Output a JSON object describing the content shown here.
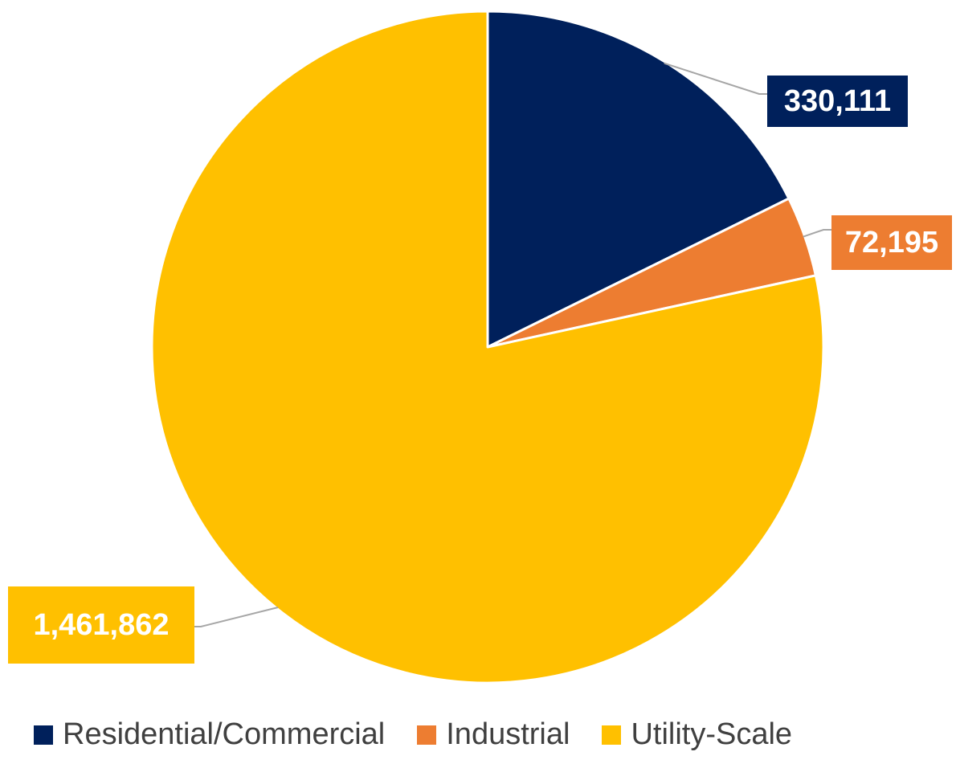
{
  "chart_data": {
    "type": "pie",
    "slices": [
      {
        "label": "Residential/Commercial",
        "value": 330111,
        "display": "330,111",
        "color": "#00205B",
        "label_text_color": "#ffffff"
      },
      {
        "label": "Industrial",
        "value": 72195,
        "display": "72,195",
        "color": "#ED7D31",
        "label_text_color": "#ffffff"
      },
      {
        "label": "Utility-Scale",
        "value": 1461862,
        "display": "1,461,862",
        "color": "#FFC000",
        "label_text_color": "#ffffff"
      }
    ],
    "start_angle_deg": 0,
    "direction": "clockwise",
    "legend_position": "bottom",
    "data_labels": "outside with leader lines"
  }
}
